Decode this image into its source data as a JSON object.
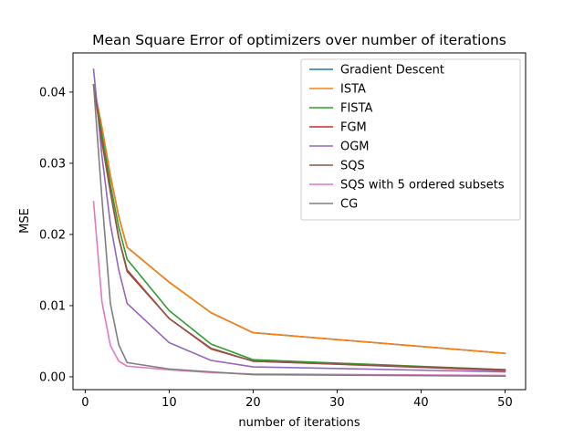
{
  "chart_data": {
    "type": "line",
    "title": "Mean Square Error of optimizers over number of iterations",
    "xlabel": "number of iterations",
    "ylabel": "MSE",
    "xlim": [
      -1.45,
      52.45
    ],
    "ylim": [
      -0.0018,
      0.0455
    ],
    "xticks": [
      0,
      10,
      20,
      30,
      40,
      50
    ],
    "xtick_labels": [
      "0",
      "10",
      "20",
      "30",
      "40",
      "50"
    ],
    "yticks": [
      0.0,
      0.01,
      0.02,
      0.03,
      0.04
    ],
    "ytick_labels": [
      "0.00",
      "0.01",
      "0.02",
      "0.03",
      "0.04"
    ],
    "grid": false,
    "legend_position": "upper right",
    "x": [
      1,
      2,
      3,
      4,
      5,
      10,
      15,
      20,
      50
    ],
    "series": [
      {
        "name": "Gradient Descent",
        "color": "#1f77b4",
        "values": [
          0.041,
          0.035,
          0.0283,
          0.0225,
          0.0182,
          0.0133,
          0.009,
          0.0062,
          0.0033
        ]
      },
      {
        "name": "ISTA",
        "color": "#ff7f0e",
        "values": [
          0.041,
          0.035,
          0.0283,
          0.0225,
          0.0182,
          0.0133,
          0.009,
          0.0062,
          0.0033
        ]
      },
      {
        "name": "FISTA",
        "color": "#2ca02c",
        "values": [
          0.041,
          0.034,
          0.027,
          0.021,
          0.0165,
          0.0093,
          0.0046,
          0.0024,
          0.001
        ]
      },
      {
        "name": "FGM",
        "color": "#d62728",
        "values": [
          0.041,
          0.033,
          0.026,
          0.0195,
          0.015,
          0.0082,
          0.0039,
          0.0022,
          0.0009
        ]
      },
      {
        "name": "OGM",
        "color": "#9467bd",
        "values": [
          0.0432,
          0.031,
          0.0215,
          0.015,
          0.0103,
          0.0048,
          0.0023,
          0.0014,
          0.0007
        ]
      },
      {
        "name": "SQS",
        "color": "#8c564b",
        "values": [
          0.041,
          0.033,
          0.026,
          0.0195,
          0.0148,
          0.0082,
          0.004,
          0.0022,
          0.001
        ]
      },
      {
        "name": "SQS with 5 ordered subsets",
        "color": "#e377c2",
        "values": [
          0.0246,
          0.0105,
          0.0044,
          0.0022,
          0.0015,
          0.001,
          0.0006,
          0.0004,
          0.0002
        ]
      },
      {
        "name": "CG",
        "color": "#7f7f7f",
        "values": [
          0.041,
          0.025,
          0.0103,
          0.0045,
          0.002,
          0.0011,
          0.0007,
          0.0003,
          0.0001
        ]
      }
    ]
  }
}
